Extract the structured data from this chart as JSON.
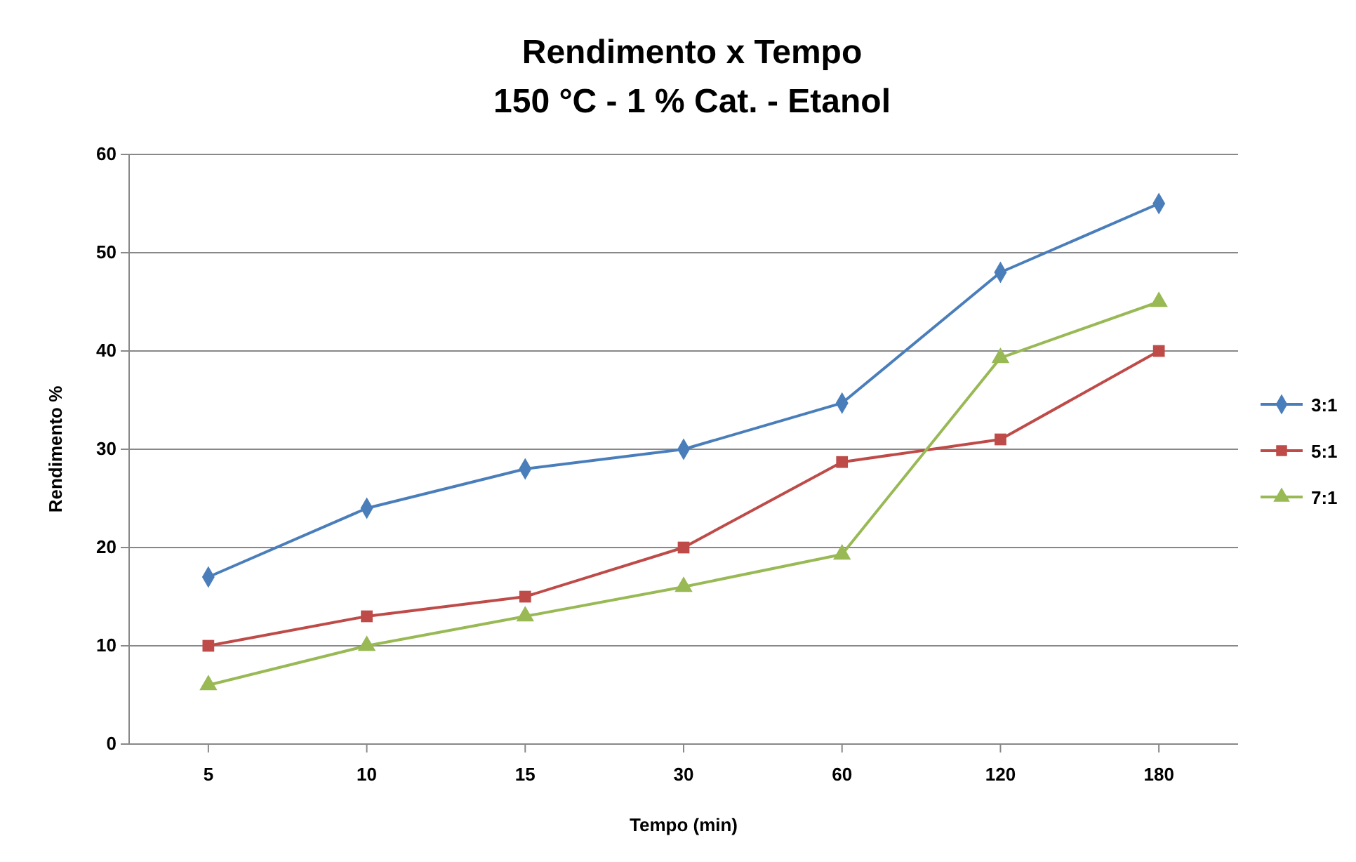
{
  "chart_data": {
    "type": "line",
    "title": "Rendimento x Tempo",
    "subtitle": "150 °C - 1 % Cat. - Etanol",
    "xlabel": "Tempo (min)",
    "ylabel": "Rendimento %",
    "categories": [
      "5",
      "10",
      "15",
      "30",
      "60",
      "120",
      "180"
    ],
    "series": [
      {
        "name": "3:1",
        "color": "#4a7ebb",
        "marker": "diamond",
        "values": [
          17,
          24,
          28,
          30,
          34.7,
          48,
          55
        ]
      },
      {
        "name": "5:1",
        "color": "#be4b48",
        "marker": "square",
        "values": [
          10,
          13,
          15,
          20,
          28.7,
          31,
          40
        ]
      },
      {
        "name": "7:1",
        "color": "#98b954",
        "marker": "triangle",
        "values": [
          6,
          10,
          13,
          16,
          19.3,
          39.3,
          45
        ]
      }
    ],
    "ylim": [
      0,
      60
    ],
    "yticks": [
      0,
      10,
      20,
      30,
      40,
      50,
      60
    ],
    "grid": "y",
    "legend": "right",
    "line_style": "solid"
  }
}
